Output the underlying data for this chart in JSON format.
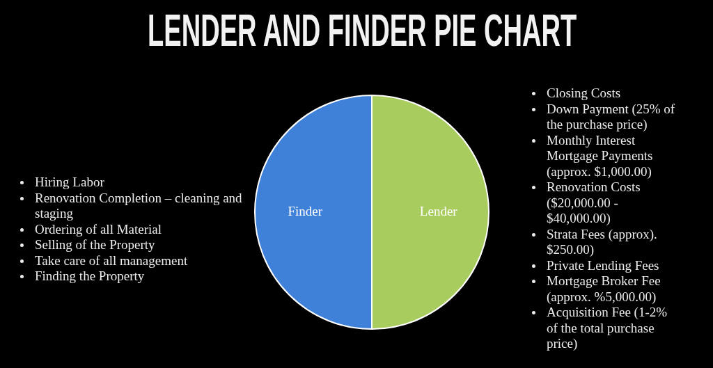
{
  "chart_data": {
    "type": "pie",
    "title": "LENDER AND FINDER PIE CHART",
    "categories": [
      "Lender",
      "Finder"
    ],
    "values": [
      50,
      50
    ],
    "colors": [
      "#a9cc5f",
      "#3f80d8"
    ],
    "annotations": [
      "Hiring Labor\nRenovation Completion – cleaning and staging\nOrdering of all Material\nSelling of the Property\nTake care of all management\nFinding the Property",
      "Closing Costs\nDown Payment (25% of the purchase price)\nMonthly Interest Mortgage Payments (approx. $1,000.00)\nRenovation Costs ($20,000.00 - $40,000.00)\nStrata Fees (approx). $250.00)\nPrivate Lending Fees\nMortgage Broker Fee (approx. %5,000.00)\nAcquisition Fee (1-2% of the total purchase price)"
    ]
  }
}
